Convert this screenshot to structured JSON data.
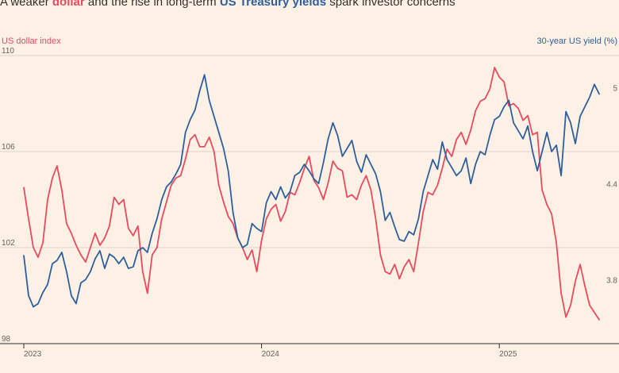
{
  "subtitle": {
    "part1": "A weaker ",
    "dollar": "dollar",
    "part2": " and the rise in long-term ",
    "yield": "US Treasury yields",
    "part3": " spark investor concerns"
  },
  "colors": {
    "dollar": "#e84a5f",
    "yield": "#2f5f9b",
    "grid": "#ddd3c9",
    "background": "#fdf1e5"
  },
  "chart_data": {
    "type": "line",
    "left_axis_label": "US dollar index",
    "right_axis_label": "30-year US yield (%)",
    "x_range": [
      2023.0,
      2025.42
    ],
    "x_ticks": [
      {
        "value": 2023.0,
        "label": "2023"
      },
      {
        "value": 2024.0,
        "label": "2024"
      },
      {
        "value": 2025.0,
        "label": "2025"
      }
    ],
    "left_ylim": [
      98,
      110
    ],
    "left_ticks": [
      98,
      102,
      106,
      110
    ],
    "right_ylim": [
      3.4,
      5.2
    ],
    "right_ticks": [
      3.8,
      4.4,
      5
    ],
    "grid": true,
    "series": [
      {
        "name": "US dollar index",
        "axis": "left",
        "color": "#e84a5f",
        "points": [
          [
            2023.0,
            104.5
          ],
          [
            2023.02,
            103.2
          ],
          [
            2023.04,
            102.0
          ],
          [
            2023.06,
            101.6
          ],
          [
            2023.08,
            102.2
          ],
          [
            2023.1,
            104.0
          ],
          [
            2023.12,
            104.9
          ],
          [
            2023.14,
            105.4
          ],
          [
            2023.16,
            104.4
          ],
          [
            2023.18,
            103.0
          ],
          [
            2023.2,
            102.6
          ],
          [
            2023.22,
            102.1
          ],
          [
            2023.24,
            101.7
          ],
          [
            2023.26,
            101.4
          ],
          [
            2023.28,
            102.0
          ],
          [
            2023.3,
            102.6
          ],
          [
            2023.32,
            102.1
          ],
          [
            2023.34,
            102.4
          ],
          [
            2023.36,
            102.9
          ],
          [
            2023.38,
            104.1
          ],
          [
            2023.4,
            103.8
          ],
          [
            2023.42,
            104.0
          ],
          [
            2023.44,
            102.8
          ],
          [
            2023.46,
            102.5
          ],
          [
            2023.48,
            102.9
          ],
          [
            2023.5,
            101.0
          ],
          [
            2023.52,
            100.1
          ],
          [
            2023.54,
            101.7
          ],
          [
            2023.56,
            102.0
          ],
          [
            2023.58,
            103.2
          ],
          [
            2023.6,
            103.9
          ],
          [
            2023.62,
            104.6
          ],
          [
            2023.64,
            104.9
          ],
          [
            2023.66,
            105.0
          ],
          [
            2023.68,
            105.7
          ],
          [
            2023.7,
            106.5
          ],
          [
            2023.72,
            106.7
          ],
          [
            2023.74,
            106.2
          ],
          [
            2023.76,
            106.2
          ],
          [
            2023.78,
            106.6
          ],
          [
            2023.8,
            106.0
          ],
          [
            2023.82,
            104.6
          ],
          [
            2023.84,
            103.9
          ],
          [
            2023.86,
            103.3
          ],
          [
            2023.88,
            103.0
          ],
          [
            2023.9,
            102.4
          ],
          [
            2023.92,
            102.0
          ],
          [
            2023.94,
            101.5
          ],
          [
            2023.96,
            101.9
          ],
          [
            2023.98,
            101.0
          ],
          [
            2024.0,
            102.3
          ],
          [
            2024.02,
            103.2
          ],
          [
            2024.04,
            103.6
          ],
          [
            2024.06,
            103.8
          ],
          [
            2024.08,
            103.1
          ],
          [
            2024.1,
            103.5
          ],
          [
            2024.12,
            104.3
          ],
          [
            2024.14,
            104.2
          ],
          [
            2024.16,
            104.7
          ],
          [
            2024.18,
            105.3
          ],
          [
            2024.2,
            105.8
          ],
          [
            2024.22,
            104.8
          ],
          [
            2024.24,
            104.5
          ],
          [
            2024.26,
            104.0
          ],
          [
            2024.28,
            104.7
          ],
          [
            2024.3,
            105.6
          ],
          [
            2024.32,
            105.3
          ],
          [
            2024.34,
            105.2
          ],
          [
            2024.36,
            104.1
          ],
          [
            2024.38,
            104.2
          ],
          [
            2024.4,
            104.0
          ],
          [
            2024.42,
            104.6
          ],
          [
            2024.44,
            105.0
          ],
          [
            2024.46,
            104.4
          ],
          [
            2024.48,
            103.2
          ],
          [
            2024.5,
            101.7
          ],
          [
            2024.52,
            101.0
          ],
          [
            2024.54,
            100.9
          ],
          [
            2024.56,
            101.3
          ],
          [
            2024.58,
            100.7
          ],
          [
            2024.6,
            101.2
          ],
          [
            2024.62,
            101.5
          ],
          [
            2024.64,
            101.0
          ],
          [
            2024.66,
            102.2
          ],
          [
            2024.68,
            103.5
          ],
          [
            2024.7,
            104.3
          ],
          [
            2024.72,
            104.2
          ],
          [
            2024.74,
            104.6
          ],
          [
            2024.76,
            105.3
          ],
          [
            2024.78,
            106.1
          ],
          [
            2024.8,
            105.8
          ],
          [
            2024.82,
            106.5
          ],
          [
            2024.84,
            106.8
          ],
          [
            2024.86,
            106.3
          ],
          [
            2024.88,
            106.9
          ],
          [
            2024.9,
            107.7
          ],
          [
            2024.92,
            108.1
          ],
          [
            2024.94,
            108.2
          ],
          [
            2024.96,
            108.6
          ],
          [
            2024.98,
            109.5
          ],
          [
            2025.0,
            109.1
          ],
          [
            2025.02,
            108.9
          ],
          [
            2025.04,
            107.9
          ],
          [
            2025.06,
            108.0
          ],
          [
            2025.08,
            107.8
          ],
          [
            2025.1,
            107.3
          ],
          [
            2025.12,
            107.5
          ],
          [
            2025.14,
            106.7
          ],
          [
            2025.16,
            106.8
          ],
          [
            2025.18,
            104.4
          ],
          [
            2025.2,
            103.8
          ],
          [
            2025.22,
            103.4
          ],
          [
            2025.24,
            102.2
          ],
          [
            2025.26,
            100.1
          ],
          [
            2025.28,
            99.1
          ],
          [
            2025.3,
            99.6
          ],
          [
            2025.32,
            100.6
          ],
          [
            2025.34,
            101.3
          ],
          [
            2025.36,
            100.4
          ],
          [
            2025.38,
            99.6
          ],
          [
            2025.4,
            99.3
          ],
          [
            2025.42,
            99.0
          ]
        ]
      },
      {
        "name": "30-year US yield (%)",
        "axis": "right",
        "color": "#2f5f9b",
        "points": [
          [
            2023.0,
            3.95
          ],
          [
            2023.02,
            3.7
          ],
          [
            2023.04,
            3.63
          ],
          [
            2023.06,
            3.65
          ],
          [
            2023.08,
            3.72
          ],
          [
            2023.1,
            3.77
          ],
          [
            2023.12,
            3.9
          ],
          [
            2023.14,
            3.92
          ],
          [
            2023.16,
            3.97
          ],
          [
            2023.18,
            3.85
          ],
          [
            2023.2,
            3.7
          ],
          [
            2023.22,
            3.65
          ],
          [
            2023.24,
            3.78
          ],
          [
            2023.26,
            3.8
          ],
          [
            2023.28,
            3.85
          ],
          [
            2023.3,
            3.93
          ],
          [
            2023.32,
            3.98
          ],
          [
            2023.34,
            3.87
          ],
          [
            2023.36,
            3.96
          ],
          [
            2023.38,
            3.94
          ],
          [
            2023.4,
            3.9
          ],
          [
            2023.42,
            3.94
          ],
          [
            2023.44,
            3.87
          ],
          [
            2023.46,
            3.88
          ],
          [
            2023.48,
            3.98
          ],
          [
            2023.5,
            4.0
          ],
          [
            2023.52,
            3.97
          ],
          [
            2023.54,
            4.09
          ],
          [
            2023.56,
            4.18
          ],
          [
            2023.58,
            4.3
          ],
          [
            2023.6,
            4.38
          ],
          [
            2023.62,
            4.41
          ],
          [
            2023.64,
            4.46
          ],
          [
            2023.66,
            4.52
          ],
          [
            2023.68,
            4.72
          ],
          [
            2023.7,
            4.8
          ],
          [
            2023.72,
            4.86
          ],
          [
            2023.74,
            4.98
          ],
          [
            2023.76,
            5.08
          ],
          [
            2023.78,
            4.92
          ],
          [
            2023.8,
            4.82
          ],
          [
            2023.82,
            4.72
          ],
          [
            2023.84,
            4.62
          ],
          [
            2023.86,
            4.48
          ],
          [
            2023.88,
            4.22
          ],
          [
            2023.9,
            4.06
          ],
          [
            2023.92,
            4.0
          ],
          [
            2023.94,
            4.02
          ],
          [
            2023.96,
            4.15
          ],
          [
            2023.98,
            4.12
          ],
          [
            2024.0,
            4.1
          ],
          [
            2024.02,
            4.28
          ],
          [
            2024.04,
            4.35
          ],
          [
            2024.06,
            4.3
          ],
          [
            2024.08,
            4.38
          ],
          [
            2024.1,
            4.31
          ],
          [
            2024.12,
            4.35
          ],
          [
            2024.14,
            4.45
          ],
          [
            2024.16,
            4.47
          ],
          [
            2024.18,
            4.52
          ],
          [
            2024.2,
            4.48
          ],
          [
            2024.22,
            4.43
          ],
          [
            2024.24,
            4.4
          ],
          [
            2024.26,
            4.53
          ],
          [
            2024.28,
            4.68
          ],
          [
            2024.3,
            4.78
          ],
          [
            2024.32,
            4.7
          ],
          [
            2024.34,
            4.57
          ],
          [
            2024.36,
            4.62
          ],
          [
            2024.38,
            4.67
          ],
          [
            2024.4,
            4.54
          ],
          [
            2024.42,
            4.47
          ],
          [
            2024.44,
            4.58
          ],
          [
            2024.46,
            4.52
          ],
          [
            2024.48,
            4.46
          ],
          [
            2024.5,
            4.35
          ],
          [
            2024.52,
            4.17
          ],
          [
            2024.54,
            4.22
          ],
          [
            2024.56,
            4.13
          ],
          [
            2024.58,
            4.05
          ],
          [
            2024.6,
            4.04
          ],
          [
            2024.62,
            4.1
          ],
          [
            2024.64,
            4.08
          ],
          [
            2024.66,
            4.18
          ],
          [
            2024.68,
            4.35
          ],
          [
            2024.7,
            4.45
          ],
          [
            2024.72,
            4.55
          ],
          [
            2024.74,
            4.49
          ],
          [
            2024.76,
            4.66
          ],
          [
            2024.78,
            4.55
          ],
          [
            2024.8,
            4.5
          ],
          [
            2024.82,
            4.45
          ],
          [
            2024.84,
            4.48
          ],
          [
            2024.86,
            4.56
          ],
          [
            2024.88,
            4.4
          ],
          [
            2024.9,
            4.52
          ],
          [
            2024.92,
            4.6
          ],
          [
            2024.94,
            4.58
          ],
          [
            2024.96,
            4.7
          ],
          [
            2024.98,
            4.8
          ],
          [
            2025.0,
            4.82
          ],
          [
            2025.02,
            4.88
          ],
          [
            2025.04,
            4.92
          ],
          [
            2025.06,
            4.78
          ],
          [
            2025.08,
            4.73
          ],
          [
            2025.1,
            4.68
          ],
          [
            2025.12,
            4.76
          ],
          [
            2025.14,
            4.6
          ],
          [
            2025.16,
            4.48
          ],
          [
            2025.18,
            4.6
          ],
          [
            2025.2,
            4.72
          ],
          [
            2025.22,
            4.6
          ],
          [
            2025.24,
            4.64
          ],
          [
            2025.26,
            4.45
          ],
          [
            2025.28,
            4.85
          ],
          [
            2025.3,
            4.78
          ],
          [
            2025.32,
            4.65
          ],
          [
            2025.34,
            4.82
          ],
          [
            2025.36,
            4.88
          ],
          [
            2025.38,
            4.94
          ],
          [
            2025.4,
            5.02
          ],
          [
            2025.42,
            4.96
          ]
        ]
      }
    ]
  }
}
